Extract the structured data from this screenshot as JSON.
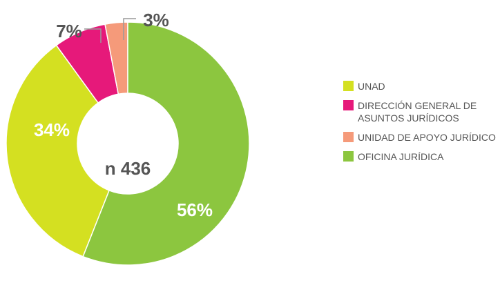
{
  "chart_data": {
    "type": "donut",
    "center_label": "n 436",
    "categories": [
      "UNAD",
      "DIRECCIÓN GENERAL DE ASUNTOS JURÍDICOS",
      "UNIDAD DE APOYO JURÍDICO",
      "OFICINA JURÍDICA"
    ],
    "values": [
      34,
      7,
      3,
      56
    ],
    "value_labels": [
      "34%",
      "7%",
      "3%",
      "56%"
    ],
    "colors": [
      "#d4e021",
      "#e6197a",
      "#f59a7a",
      "#8cc63f"
    ],
    "legend": "right"
  }
}
